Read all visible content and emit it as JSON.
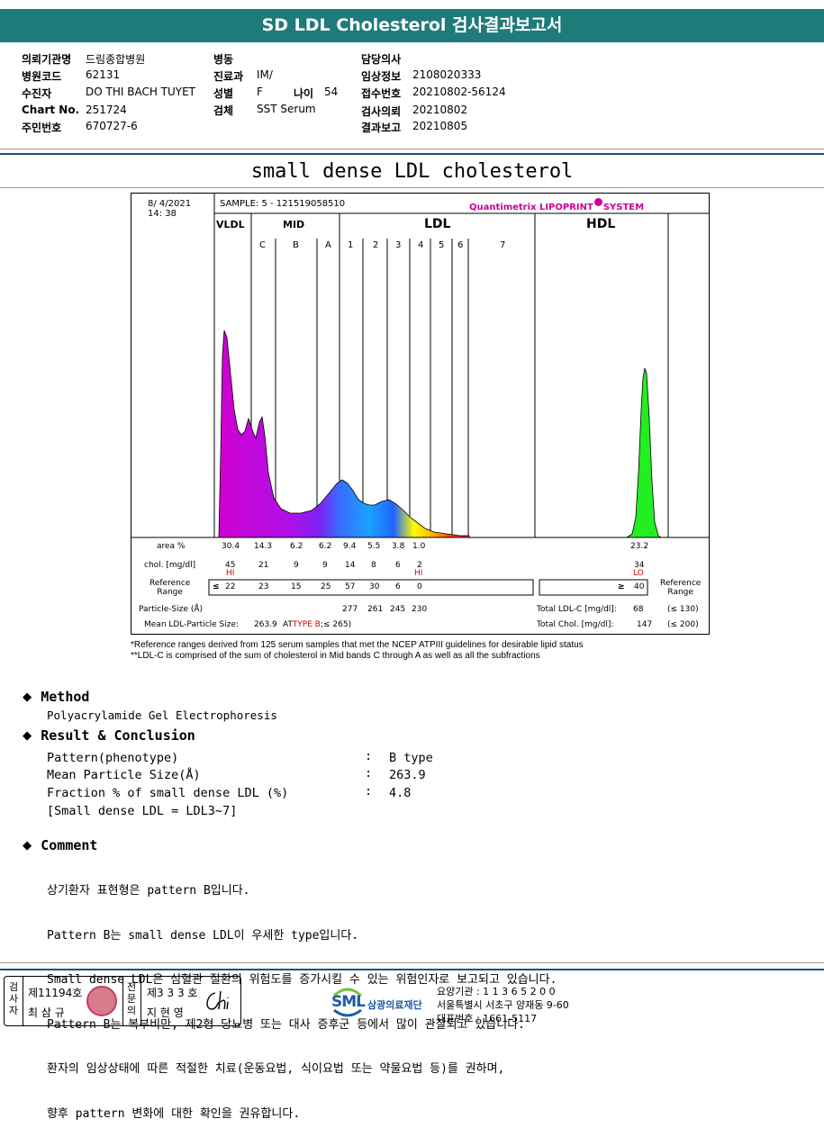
{
  "title": "SD LDL Cholesterol 검사결과보고서",
  "info": {
    "institution_label": "의뢰기관명",
    "institution": "드림종합병원",
    "hospital_code_label": "병원코드",
    "hospital_code": "62131",
    "patient_label": "수진자",
    "patient": "DO THI BACH TUYET",
    "chart_label": "Chart No.",
    "chart": "251724",
    "id_label": "주민번호",
    "id": "670727-6",
    "ward_label": "병동",
    "ward": "",
    "dept_label": "진료과",
    "dept": "IM/",
    "sex_label": "성별",
    "sex": "F",
    "age_label": "나이",
    "age": "54",
    "specimen_label": "검체",
    "specimen": "SST Serum",
    "doctor_label": "담당의사",
    "doctor": "",
    "clinical_label": "임상정보",
    "clinical": "2108020333",
    "receipt_label": "접수번호",
    "receipt": "20210802-56124",
    "request_label": "검사의뢰",
    "request": "20210802",
    "report_label": "결과보고",
    "report": "20210805"
  },
  "section_title": "small dense LDL cholesterol",
  "graph": {
    "date": "8/ 4/2021",
    "time": "14: 38",
    "sample": "SAMPLE:    5 - 121519058510",
    "system_name": "Quantimetrix LIPOPRINT",
    "system_suffix": "SYSTEM",
    "group_vldl": "VLDL",
    "group_mid": "MID",
    "group_ldl": "LDL",
    "group_hdl": "HDL",
    "subbands": [
      "C",
      "B",
      "A",
      "1",
      "2",
      "3",
      "4",
      "5",
      "6",
      "7"
    ],
    "area_label": "area %",
    "area_values": [
      "30.4",
      "14.3",
      "6.2",
      "6.2",
      "9.4",
      "5.5",
      "3.8",
      "1.0"
    ],
    "area_hdl": "23.2",
    "chol_label": "chol. [mg/dl]",
    "chol_values": [
      "45",
      "21",
      "9",
      "9",
      "14",
      "8",
      "6",
      "2"
    ],
    "chol_hdl": "34",
    "flag_hi": "HI",
    "flag_lo": "LO",
    "ref_label1": "Reference",
    "ref_label2": "Range",
    "ref_le": "≤",
    "ref_values": [
      "22",
      "23",
      "15",
      "25",
      "57",
      "30",
      "6",
      "0"
    ],
    "ref_ge": "≥",
    "ref_hdl": "40",
    "ref_right1": "Reference",
    "ref_right2": "Range",
    "particle_label": "Particle-Size (Å)",
    "particle_values": [
      "277",
      "261",
      "245",
      "230"
    ],
    "mean_label": "Mean LDL-Particle Size:",
    "mean_value": "263.9",
    "mean_pre": "AT",
    "mean_type": "TYPE B",
    "mean_post": ";≤ 265)",
    "total_ldl_label": "Total LDL-C [mg/dl]:",
    "total_ldl": "68",
    "total_ldl_ref": "(≤ 130)",
    "total_chol_label": "Total Chol. [mg/dl]:",
    "total_chol": "147",
    "total_chol_ref": "(≤ 200)"
  },
  "notes": [
    "*Reference ranges derived from 125 serum samples that met the NCEP ATPIII guidelines for desirable lipid status",
    "**LDL-C is comprised of the sum of cholesterol in Mid bands C through A as well as all the subfractions"
  ],
  "method_title": "Method",
  "method_text": "Polyacrylamide Gel Electrophoresis",
  "result_title": "Result & Conclusion",
  "results": [
    {
      "label": "Pattern(phenotype)",
      "value": "B type"
    },
    {
      "label": "Mean Particle Size(Å)",
      "value": "263.9"
    },
    {
      "label": "Fraction % of small dense LDL (%)",
      "value": "4.8"
    }
  ],
  "result_note": "[Small dense LDL = LDL3~7]",
  "colon": ":",
  "comment_title": "Comment",
  "comments": [
    "상기환자 표현형은 pattern B입니다.",
    "Pattern B는 small dense LDL이 우세한 type입니다.",
    "Small dense LDL은 심혈관 질환의 위험도를 증가시킬 수 있는 위험인자로 보고되고 있습니다.",
    "Pattern B는 복부비만, 제2형 당뇨병 또는 대사 증후군 등에서 많이 관찰되고 있습니다.",
    "환자의 임상상태에 따른 적절한 치료(운동요법, 식이요법 또는 약물요법 등)를 권하며,",
    "향후 pattern 변화에 대한 확인을 권유합니다."
  ],
  "footer": {
    "examiner_v": "검사자",
    "examiner_no": "제11194호",
    "examiner_name": "최 삼 규",
    "specialist_v": "전문의",
    "specialist_no": "제3 3 3 호",
    "specialist_name": "지 현 영",
    "logo": "SML",
    "org": "삼광의료재단",
    "addr1": "요양기관 : 1 1 3 6 5 2 0 0",
    "addr2": "서울특별시 서초구 양재동 9-60",
    "addr3": "대표번호 : 1661-5117"
  },
  "colors": {
    "title_bar": "#1f7a7a",
    "hi_flag": "#cc0000",
    "system": "#cc0099"
  }
}
